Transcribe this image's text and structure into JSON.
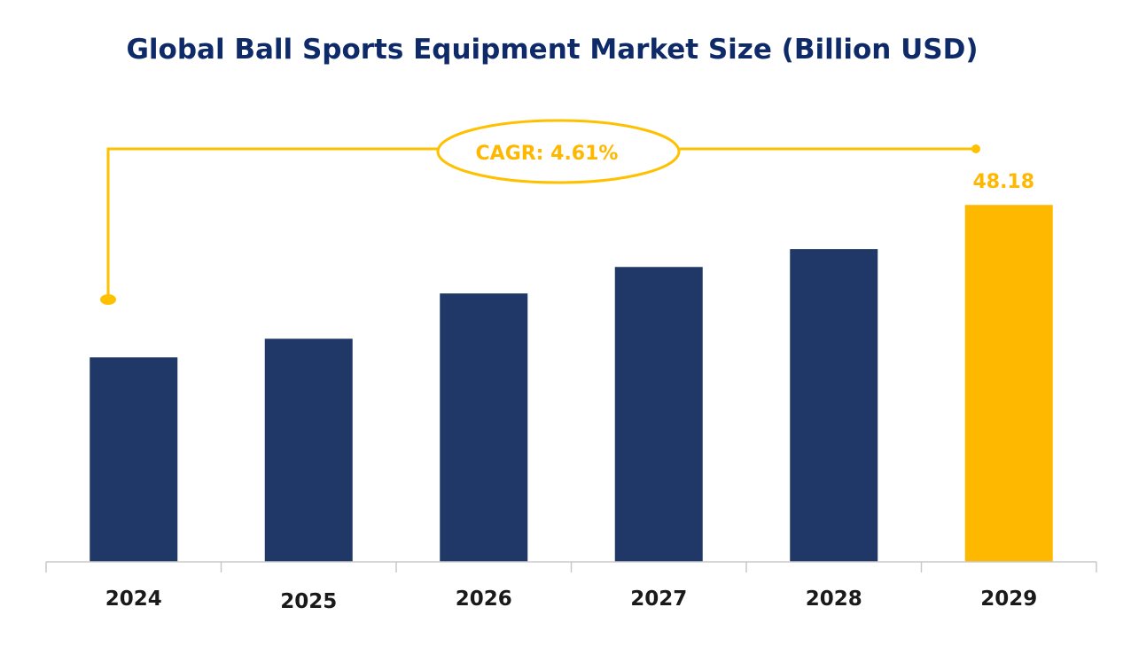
{
  "chart_data": {
    "type": "bar",
    "title": "Global Ball Sports Equipment  Market Size (Billion USD)",
    "xlabel": "",
    "ylabel": "",
    "categories": [
      "2024",
      "2025",
      "2026",
      "2027",
      "2028",
      "2029"
    ],
    "values": [
      38.45,
      39.64,
      42.53,
      44.22,
      45.36,
      48.18
    ],
    "data_labels": [
      null,
      null,
      null,
      null,
      null,
      "48.18"
    ],
    "ylim": [
      25.4,
      50
    ],
    "grid": false,
    "annotation": {
      "label": "CAGR: 4.61%",
      "from": "2024",
      "to": "2029"
    },
    "colors": {
      "bar": "#1f3868",
      "highlight": "#ffb800",
      "title": "#0f2a68"
    },
    "highlight_index": 5
  }
}
